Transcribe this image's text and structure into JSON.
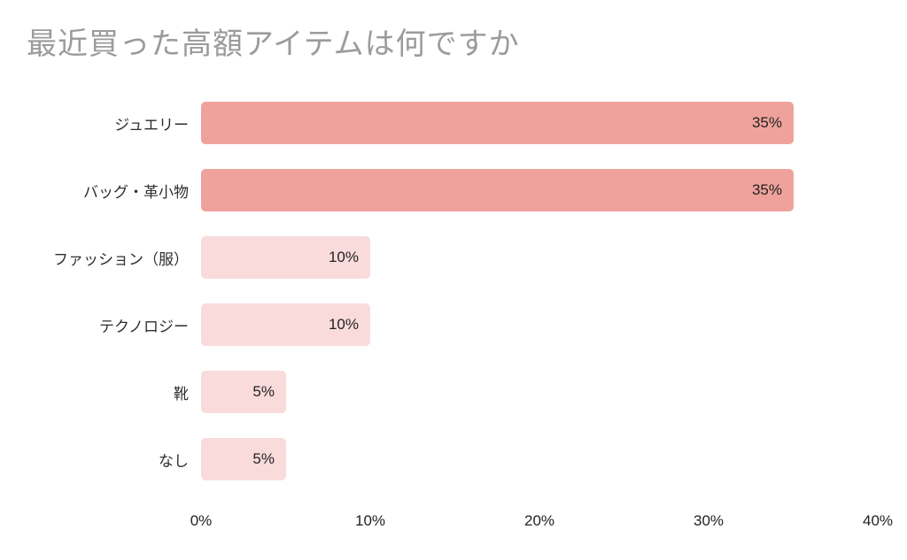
{
  "chart_data": {
    "type": "bar",
    "orientation": "horizontal",
    "title": "最近買った高額アイテムは何ですか",
    "categories": [
      "ジュエリー",
      "バッグ・革小物",
      "ファッション（服）",
      "テクノロジー",
      "靴",
      "なし"
    ],
    "values": [
      35,
      35,
      10,
      10,
      5,
      5
    ],
    "value_labels": [
      "35%",
      "35%",
      "10%",
      "10%",
      "5%",
      "5%"
    ],
    "bar_colors": [
      "#efa29b",
      "#efa29b",
      "#f9dbdc",
      "#f9dbdc",
      "#f9dbdc",
      "#f9dbdc"
    ],
    "x_ticks": [
      "0%",
      "10%",
      "20%",
      "30%",
      "40%"
    ],
    "xlim": [
      0,
      40
    ],
    "xlabel": "",
    "ylabel": "",
    "grid": false,
    "legend": false,
    "colors": {
      "title_text": "#9b9b9b",
      "label_text": "#2e2e2e",
      "value_text": "#222222",
      "background": "#ffffff",
      "bar_high": "#efa29b",
      "bar_low": "#f9dbdc"
    }
  }
}
